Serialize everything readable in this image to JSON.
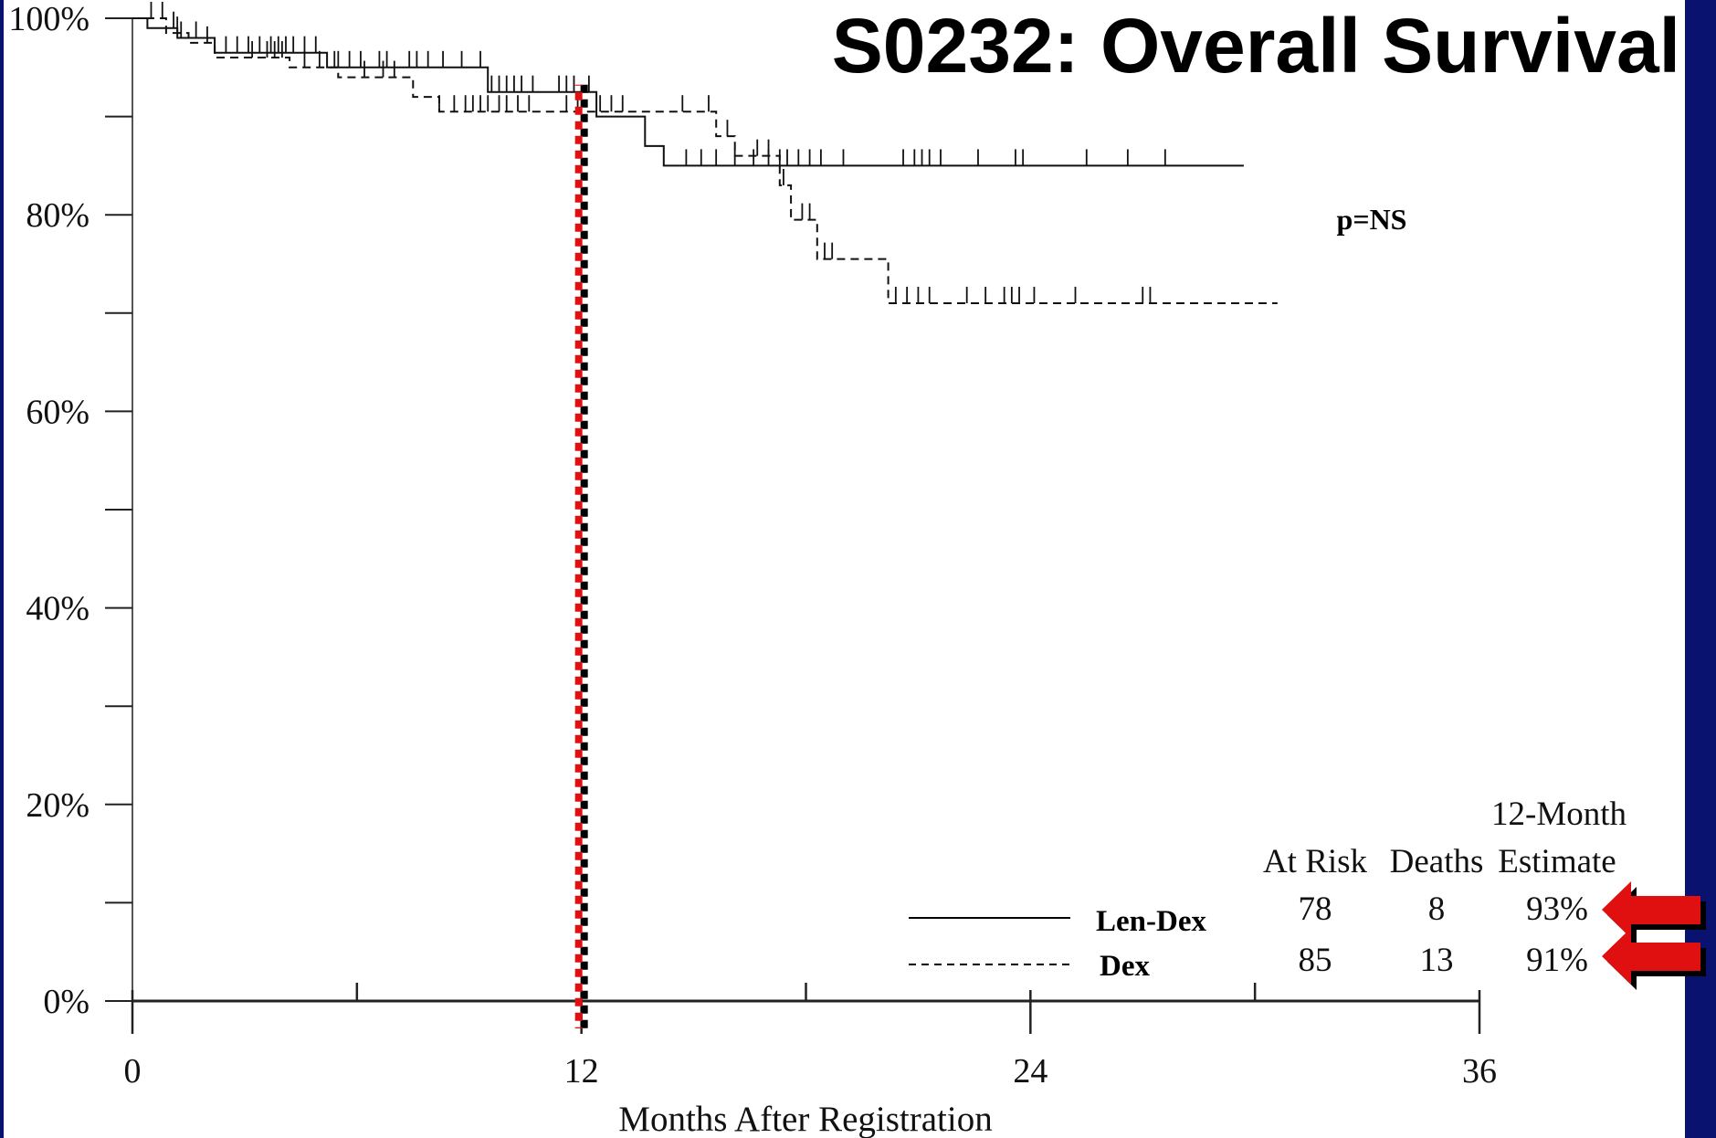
{
  "title": "S0232: Overall Survival",
  "annotation": "p=NS",
  "colors": {
    "frame": "#0a1270",
    "marker_line": "#e01010",
    "arrow": "#e01010"
  },
  "chart_data": {
    "type": "line",
    "subtype": "kaplan-meier",
    "title": "S0232: Overall Survival",
    "xlabel": "Months After Registration",
    "ylabel": "",
    "xlim": [
      0,
      36
    ],
    "ylim": [
      0,
      100
    ],
    "x_ticks": [
      0,
      12,
      24,
      36
    ],
    "x_minor_step": 6,
    "y_ticks": [
      0,
      20,
      40,
      60,
      80,
      100
    ],
    "y_minor_step": 10,
    "y_tick_labels": [
      "0%",
      "20%",
      "40%",
      "60%",
      "80%",
      "100%"
    ],
    "grid": false,
    "reference_line_x": 12,
    "series": [
      {
        "name": "Len-Dex",
        "line_style": "solid",
        "points": [
          [
            0,
            100
          ],
          [
            0.4,
            100
          ],
          [
            0.4,
            99
          ],
          [
            1.2,
            99
          ],
          [
            1.2,
            98
          ],
          [
            2.2,
            98
          ],
          [
            2.2,
            96.5
          ],
          [
            5.2,
            96.5
          ],
          [
            5.2,
            95
          ],
          [
            9.5,
            95
          ],
          [
            9.5,
            92.5
          ],
          [
            12.4,
            92.5
          ],
          [
            12.4,
            90
          ],
          [
            13.7,
            90
          ],
          [
            13.7,
            87
          ],
          [
            14.2,
            87
          ],
          [
            14.2,
            85
          ],
          [
            29.7,
            85
          ]
        ],
        "censor_x": [
          1.1,
          1.3,
          1.7,
          2.5,
          2.8,
          3.1,
          3.4,
          3.7,
          3.9,
          4.1,
          4.3,
          4.6,
          4.9,
          5.5,
          5.8,
          6.1,
          6.6,
          6.8,
          7.4,
          7.6,
          7.9,
          8.3,
          8.8,
          9.3,
          9.6,
          9.8,
          10.0,
          10.2,
          10.4,
          10.7,
          11.4,
          11.6,
          11.8,
          12.2,
          14.8,
          15.2,
          15.6,
          16.1,
          16.6,
          17.0,
          17.3,
          17.5,
          17.8,
          18.1,
          18.4,
          19.0,
          20.6,
          20.9,
          21.1,
          21.3,
          21.6,
          22.6,
          23.6,
          23.8,
          25.5,
          26.6,
          27.6
        ]
      },
      {
        "name": "Dex",
        "line_style": "dashed",
        "points": [
          [
            0,
            100
          ],
          [
            0.9,
            100
          ],
          [
            0.9,
            98.5
          ],
          [
            1.5,
            98.5
          ],
          [
            1.5,
            97.5
          ],
          [
            2.2,
            97.5
          ],
          [
            2.2,
            96
          ],
          [
            4.2,
            96
          ],
          [
            4.2,
            95
          ],
          [
            5.5,
            95
          ],
          [
            5.5,
            94
          ],
          [
            7.5,
            94
          ],
          [
            7.5,
            92
          ],
          [
            8.2,
            92
          ],
          [
            8.2,
            90.5
          ],
          [
            15.6,
            90.5
          ],
          [
            15.6,
            88
          ],
          [
            16.1,
            88
          ],
          [
            16.1,
            86
          ],
          [
            17.3,
            86
          ],
          [
            17.3,
            83
          ],
          [
            17.6,
            83
          ],
          [
            17.6,
            79.5
          ],
          [
            18.3,
            79.5
          ],
          [
            18.3,
            75.5
          ],
          [
            20.2,
            75.5
          ],
          [
            20.2,
            71
          ],
          [
            30.6,
            71
          ]
        ],
        "censor_x": [
          0.5,
          0.8,
          1.2,
          2.0,
          3.2,
          3.6,
          3.8,
          4.0,
          4.6,
          5.0,
          5.4,
          6.2,
          6.7,
          7.0,
          8.2,
          8.6,
          8.9,
          9.1,
          9.3,
          9.5,
          9.8,
          10.0,
          10.3,
          10.6,
          11.6,
          11.9,
          12.5,
          12.8,
          13.1,
          14.7,
          15.4,
          15.9,
          16.7,
          17.0,
          17.4,
          17.9,
          18.1,
          18.5,
          18.7,
          20.4,
          20.7,
          21.0,
          21.3,
          22.3,
          22.8,
          23.3,
          23.5,
          23.7,
          24.1,
          25.2,
          27.0,
          27.2
        ]
      }
    ],
    "table": {
      "headers": {
        "top": "12-Month",
        "at_risk": "At Risk",
        "deaths": "Deaths",
        "estimate": "Estimate"
      },
      "rows": [
        {
          "name": "Len-Dex",
          "at_risk": "78",
          "deaths": "8",
          "estimate": "93%"
        },
        {
          "name": "Dex",
          "at_risk": "85",
          "deaths": "13",
          "estimate": "91%"
        }
      ]
    }
  }
}
